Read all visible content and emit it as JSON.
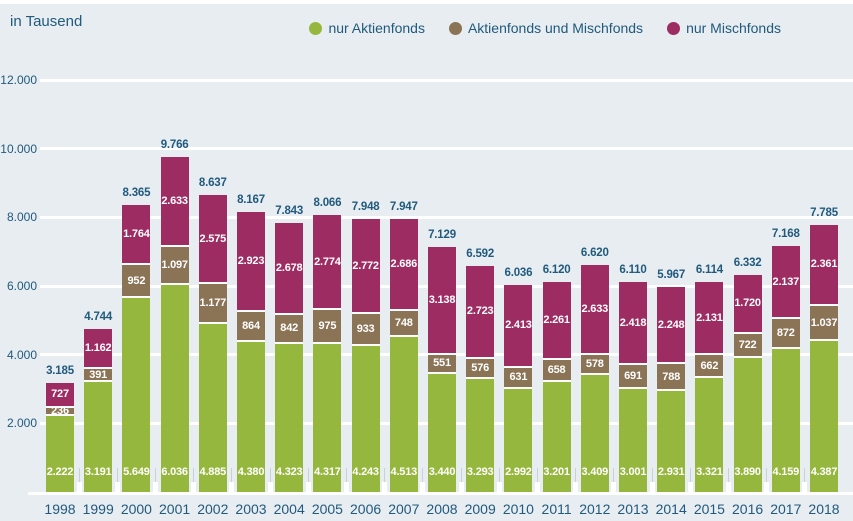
{
  "page": {
    "unit_label": "in Tausend",
    "background_color": "#e8edf1",
    "text_color": "#215a7d",
    "gridline_color": "#ffffff"
  },
  "legend": {
    "position": "top-right",
    "items": [
      {
        "label": "nur Aktienfonds",
        "color": "#96b73d"
      },
      {
        "label": "Aktienfonds und Mischfonds",
        "color": "#8b7355"
      },
      {
        "label": "nur Mischfonds",
        "color": "#9d2c62"
      }
    ]
  },
  "chart_data": {
    "type": "bar",
    "stacked": true,
    "title": "",
    "unit_label": "in Tausend",
    "legend_position": "top-right",
    "grid": "horizontal",
    "number_format": "german-thousands-dot",
    "categories": [
      "1998",
      "1999",
      "2000",
      "2001",
      "2002",
      "2003",
      "2004",
      "2005",
      "2006",
      "2007",
      "2008",
      "2009",
      "2010",
      "2011",
      "2012",
      "2013",
      "2014",
      "2015",
      "2016",
      "2017",
      "2018"
    ],
    "series": [
      {
        "name": "nur Aktienfonds",
        "color": "#96b73d",
        "values": [
          2222,
          3191,
          5649,
          6036,
          4885,
          4380,
          4323,
          4317,
          4243,
          4513,
          3440,
          3293,
          2992,
          3201,
          3409,
          3001,
          2931,
          3321,
          3890,
          4159,
          4387
        ]
      },
      {
        "name": "Aktienfonds und Mischfonds",
        "color": "#8b7355",
        "values": [
          236,
          391,
          952,
          1097,
          1177,
          864,
          842,
          975,
          933,
          748,
          551,
          576,
          631,
          658,
          578,
          691,
          788,
          662,
          722,
          872,
          1037
        ]
      },
      {
        "name": "nur Mischfonds",
        "color": "#9d2c62",
        "values": [
          727,
          1162,
          1764,
          2633,
          2575,
          2923,
          2678,
          2774,
          2772,
          2686,
          3138,
          2723,
          2413,
          2261,
          2633,
          2418,
          2248,
          2131,
          1720,
          2137,
          2361
        ]
      }
    ],
    "totals": [
      3185,
      4744,
      8365,
      9766,
      8637,
      8167,
      7843,
      8066,
      7948,
      7947,
      7129,
      6592,
      6036,
      6120,
      6620,
      6110,
      5967,
      6114,
      6332,
      7168,
      7785
    ],
    "y_axis": {
      "min": 0,
      "max": 12000,
      "tick_step": 2000,
      "tick_labels": [
        "2.000",
        "4.000",
        "6.000",
        "8.000",
        "10.000",
        "12.000"
      ]
    }
  }
}
